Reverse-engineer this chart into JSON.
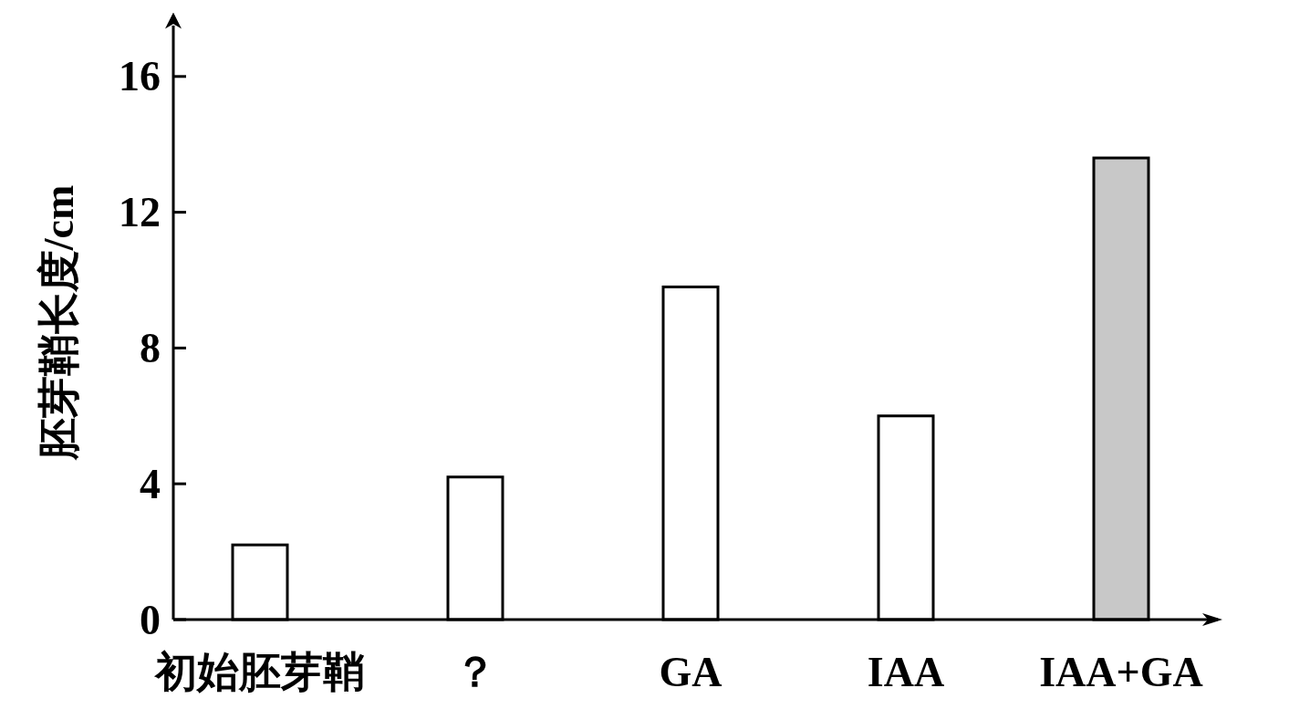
{
  "chart_data": {
    "type": "bar",
    "ylabel": "胚芽鞘长度/cm",
    "categories": [
      "初始胚芽鞘",
      "？",
      "GA",
      "IAA",
      "IAA+GA"
    ],
    "values": [
      2.2,
      4.2,
      9.8,
      6.0,
      13.6
    ],
    "colors": [
      "#ffffff",
      "#ffffff",
      "#ffffff",
      "#ffffff",
      "#c8c8c8"
    ],
    "ylim": [
      0,
      17.5
    ],
    "yticks": [
      0,
      4,
      8,
      12,
      16
    ],
    "grid": false
  }
}
